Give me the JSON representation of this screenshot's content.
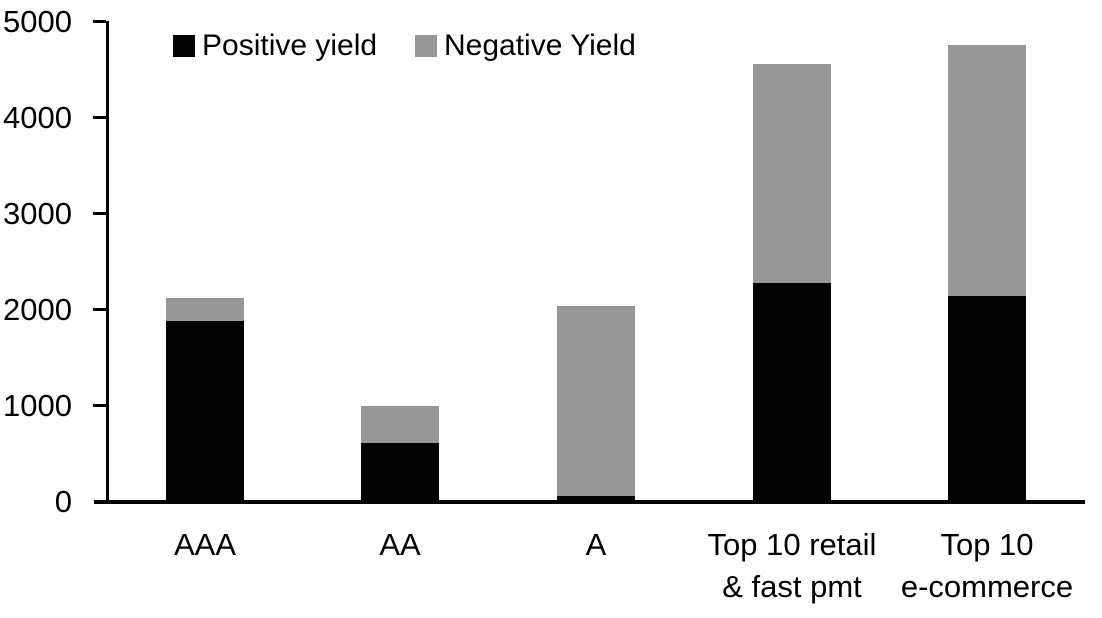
{
  "chart_data": {
    "type": "bar",
    "stacked": true,
    "title": "",
    "xlabel": "",
    "ylabel": "",
    "categories": [
      "AAA",
      "AA",
      "A",
      "Top 10 retail\n& fast pmt",
      "Top 10\ne-commerce"
    ],
    "series": [
      {
        "name": "Positive yield",
        "color": "#000000",
        "values": [
          1880,
          600,
          50,
          2270,
          2140
        ]
      },
      {
        "name": "Negative Yield",
        "color": "#969696",
        "values": [
          230,
          390,
          1980,
          2280,
          2610
        ]
      }
    ],
    "totals": [
      2110,
      990,
      2030,
      4550,
      4750
    ],
    "ylim": [
      0,
      5000
    ],
    "yticks": [
      0,
      1000,
      2000,
      3000,
      4000,
      5000
    ],
    "grid": false,
    "legend_position": "top",
    "axis_color": "#000000",
    "background_color": "#ffffff"
  }
}
